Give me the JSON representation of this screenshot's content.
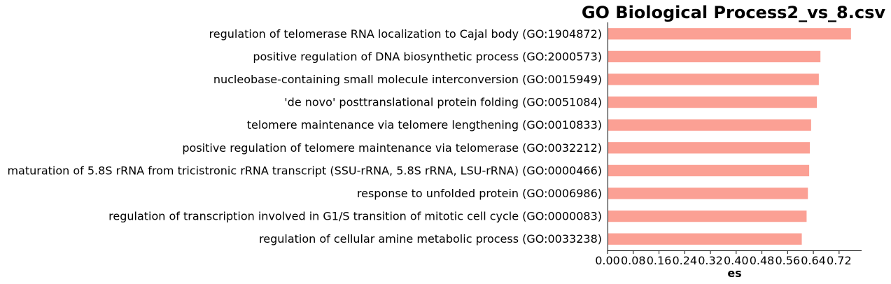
{
  "chart_data": {
    "type": "bar",
    "orientation": "horizontal",
    "title": "GO Biological Process2_vs_8.csv",
    "xlabel": "es",
    "ylabel": "",
    "xlim": [
      0,
      0.79
    ],
    "xticks": [
      "0.00",
      "0.08",
      "0.16",
      "0.24",
      "0.32",
      "0.40",
      "0.48",
      "0.56",
      "0.64",
      "0.72"
    ],
    "grid": false,
    "bar_color": "#fba094",
    "categories": [
      "regulation of telomerase RNA localization to Cajal body (GO:1904872)",
      "positive regulation of DNA biosynthetic process (GO:2000573)",
      "nucleobase-containing small molecule interconversion (GO:0015949)",
      "'de novo' posttranslational protein folding (GO:0051084)",
      "telomere maintenance via telomere lengthening (GO:0010833)",
      "positive regulation of telomere maintenance via telomerase (GO:0032212)",
      "maturation of 5.8S rRNA from tricistronic rRNA transcript (SSU-rRNA, 5.8S rRNA, LSU-rRNA) (GO:0000466)",
      "response to unfolded protein (GO:0006986)",
      "regulation of transcription involved in G1/S transition of mitotic cell cycle (GO:0000083)",
      "regulation of cellular amine metabolic process (GO:0033238)"
    ],
    "values": [
      0.757,
      0.662,
      0.657,
      0.651,
      0.633,
      0.629,
      0.627,
      0.623,
      0.619,
      0.604
    ]
  }
}
